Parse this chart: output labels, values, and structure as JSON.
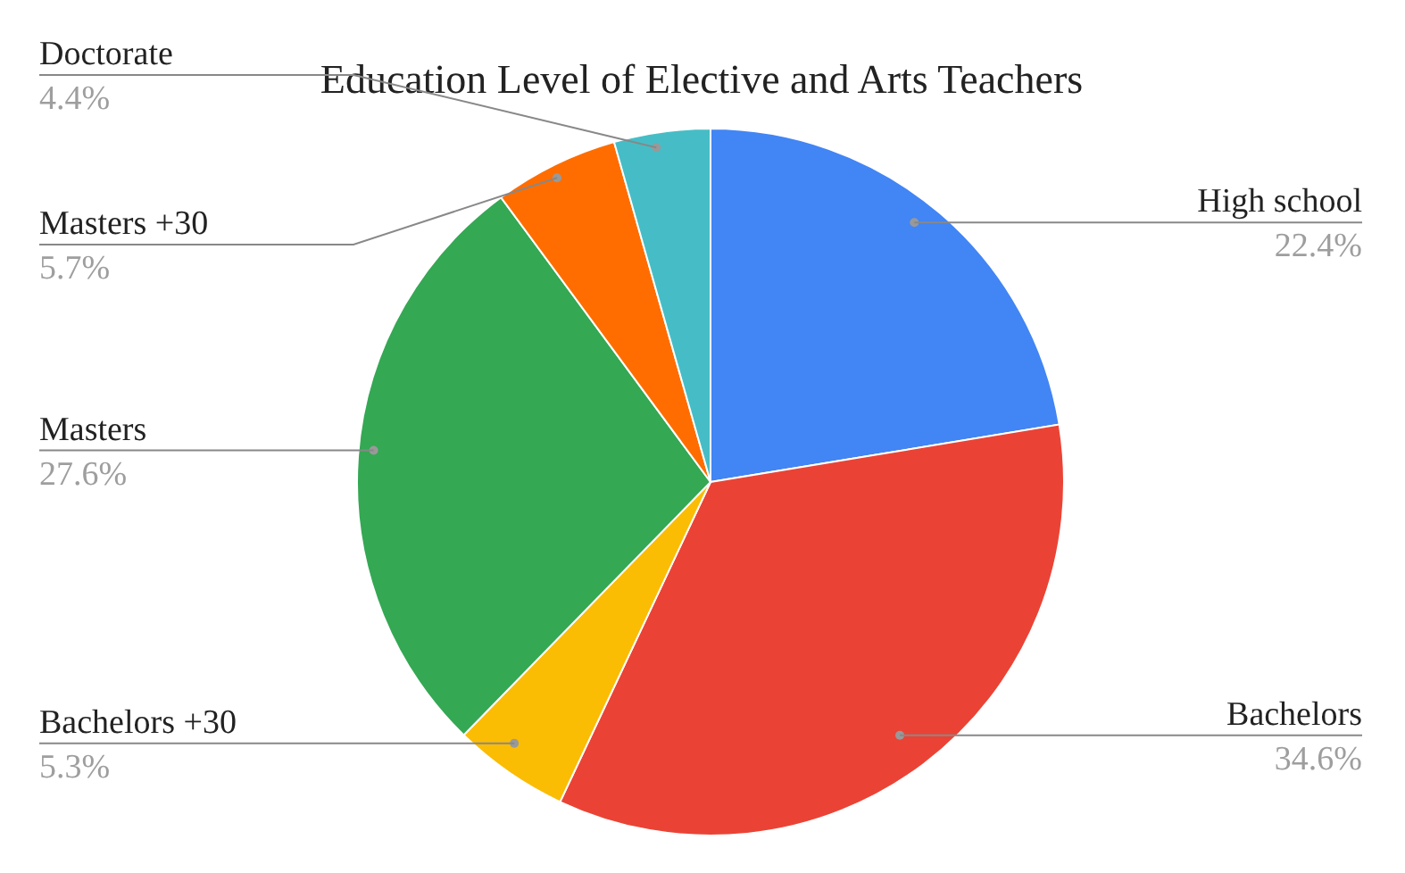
{
  "chart_data": {
    "type": "pie",
    "title": "Education Level of Elective and Arts Teachers",
    "categories": [
      "High school",
      "Bachelors",
      "Bachelors +30",
      "Masters",
      "Masters +30",
      "Doctorate"
    ],
    "values": [
      22.4,
      34.6,
      5.3,
      27.6,
      5.7,
      4.4
    ],
    "colors": [
      "#4285f4",
      "#ea4335",
      "#fbbc04",
      "#34a853",
      "#ff6d01",
      "#46bdc6"
    ],
    "value_labels": [
      "22.4%",
      "34.6%",
      "5.3%",
      "27.6%",
      "5.7%",
      "4.4%"
    ]
  }
}
